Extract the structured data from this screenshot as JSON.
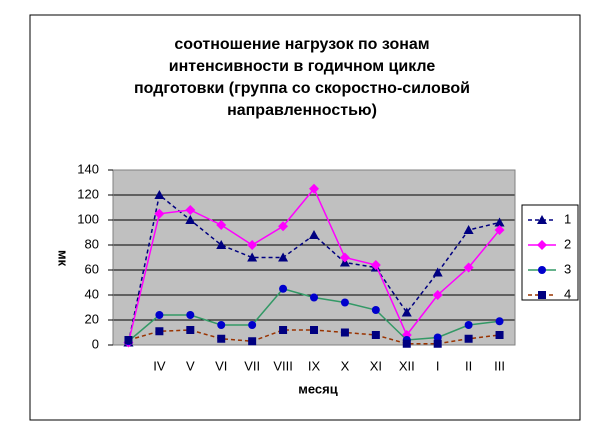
{
  "chart_data": {
    "type": "line",
    "title": [
      "соотношение нагрузок по зонам",
      "интенсивности в годичном цикле",
      "подготовки (группа со скоростно-силовой",
      "направленностью)"
    ],
    "x_label": "месяц",
    "y_label": "мк",
    "categories": [
      null,
      "IV",
      "V",
      "VI",
      "VII",
      "VIII",
      "IX",
      "X",
      "XI",
      "XII",
      "I",
      "II",
      "III"
    ],
    "series": [
      {
        "name": "1",
        "color": "#000080",
        "marker_color": "#000080",
        "marker": "triangle",
        "dashed": true,
        "values": [
          2,
          120,
          100,
          80,
          70,
          70,
          88,
          66,
          62,
          26,
          58,
          92,
          98
        ]
      },
      {
        "name": "2",
        "color": "#ff00ff",
        "marker_color": "#ff00ff",
        "marker": "diamond",
        "dashed": false,
        "values": [
          2,
          105,
          108,
          96,
          80,
          95,
          125,
          70,
          64,
          8,
          40,
          62,
          92
        ]
      },
      {
        "name": "3",
        "color": "#339966",
        "marker_color": "#0000cc",
        "marker": "circle",
        "dashed": false,
        "values": [
          3,
          24,
          24,
          16,
          16,
          45,
          38,
          34,
          28,
          4,
          6,
          16,
          19
        ]
      },
      {
        "name": "4",
        "color": "#993300",
        "marker_color": "#000080",
        "marker": "square",
        "dashed": true,
        "values": [
          4,
          11,
          12,
          5,
          3,
          12,
          12,
          10,
          8,
          1,
          1,
          5,
          8
        ]
      }
    ],
    "ylim": [
      0,
      140
    ],
    "yticks": [
      0,
      20,
      40,
      60,
      80,
      100,
      120,
      140
    ],
    "grid": true,
    "legend": "right"
  }
}
